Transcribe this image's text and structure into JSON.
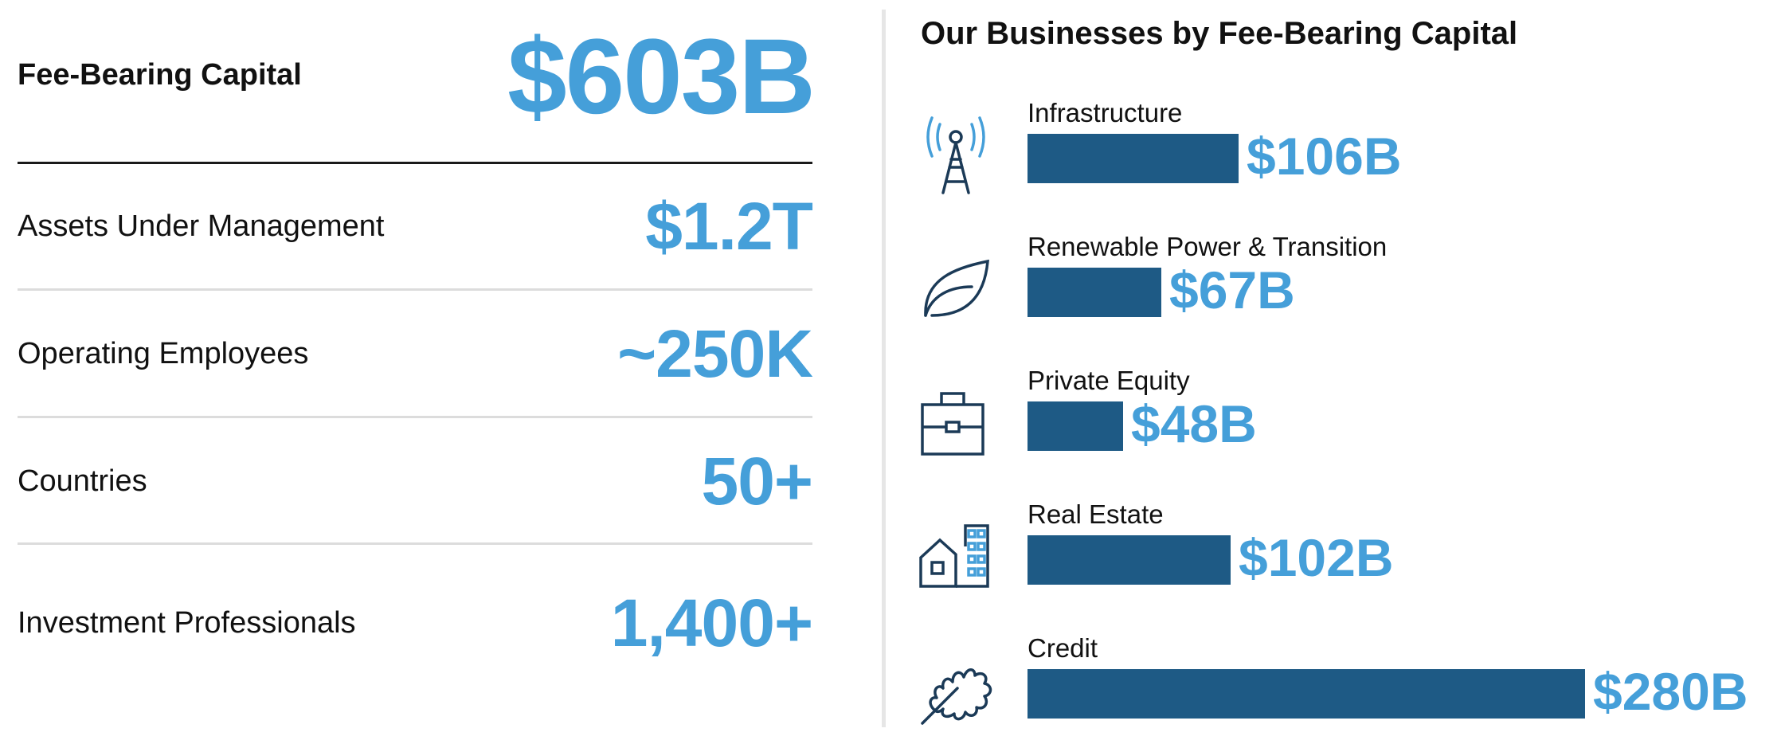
{
  "summary": {
    "fee_bearing_label": "Fee-Bearing Capital",
    "fee_bearing_value": "$603B",
    "stats": [
      {
        "label": "Assets Under Management",
        "value": "$1.2T"
      },
      {
        "label": "Operating Employees",
        "value": "~250K"
      },
      {
        "label": "Countries",
        "value": "50+"
      },
      {
        "label": "Investment Professionals",
        "value": "1,400+"
      }
    ]
  },
  "chart_data": {
    "type": "bar",
    "orientation": "horizontal",
    "title": "Our Businesses by Fee-Bearing Capital",
    "unit": "$B",
    "categories": [
      "Infrastructure",
      "Renewable Power & Transition",
      "Private Equity",
      "Real Estate",
      "Credit"
    ],
    "values": [
      106,
      67,
      48,
      102,
      280
    ],
    "value_labels": [
      "$106B",
      "$67B",
      "$48B",
      "$102B",
      "$280B"
    ],
    "icons": [
      "transmission-tower-icon",
      "leaf-icon",
      "briefcase-icon",
      "buildings-icon",
      "oak-leaf-icon"
    ],
    "bar_color": "#1e5a85",
    "label_color": "#459fd9",
    "grid": false
  }
}
